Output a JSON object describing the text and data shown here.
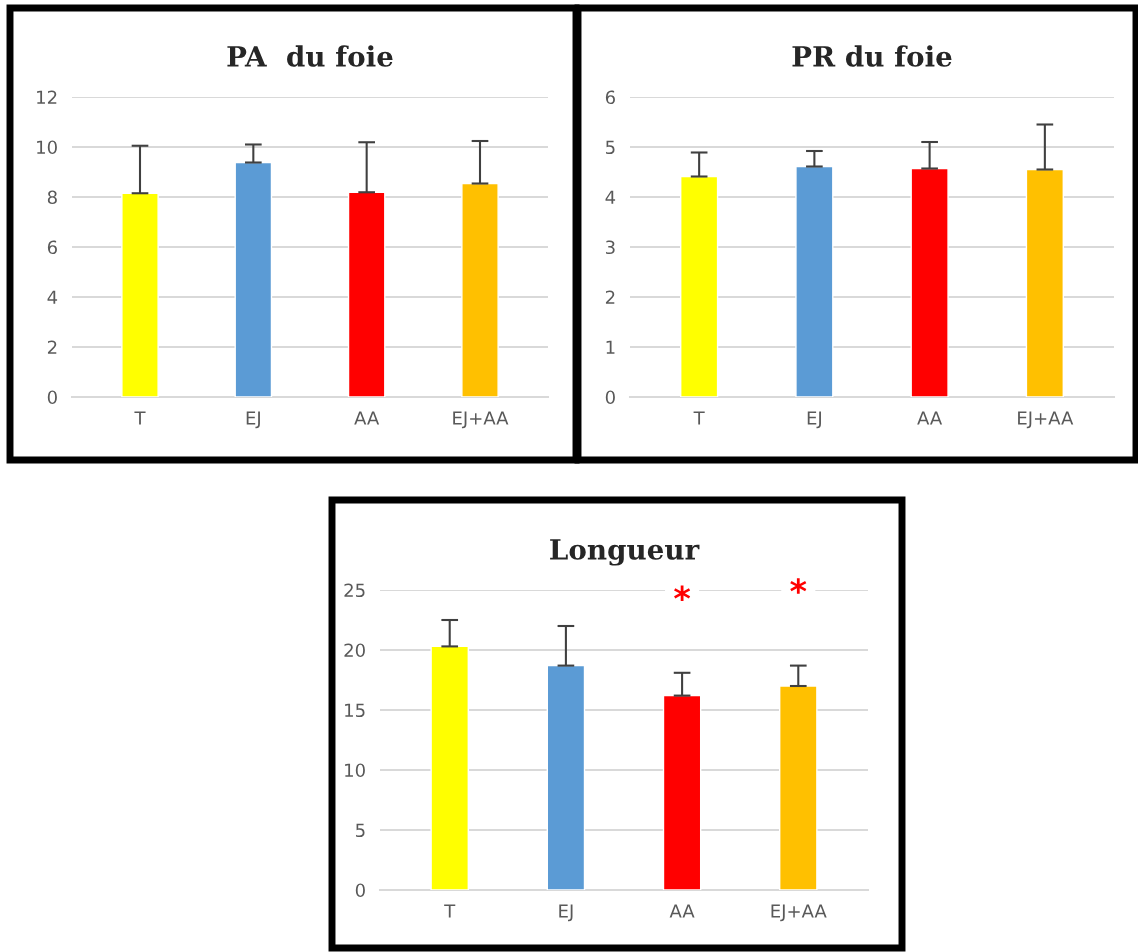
{
  "chart_data": [
    {
      "type": "bar",
      "title": "PA  du foie",
      "categories": [
        "T",
        "EJ",
        "AA",
        "EJ+AA"
      ],
      "colors": [
        "#ffff00",
        "#5b9bd5",
        "#ff0000",
        "#ffc000"
      ],
      "values": [
        8.15,
        9.38,
        8.19,
        8.54
      ],
      "errors": [
        1.9,
        0.72,
        2.0,
        1.7
      ],
      "ylim": [
        0,
        12
      ],
      "yticks": [
        0,
        2,
        4,
        6,
        8,
        10,
        12
      ],
      "grid": "y"
    },
    {
      "type": "bar",
      "title": "PR du foie",
      "categories": [
        "T",
        "EJ",
        "AA",
        "EJ+AA"
      ],
      "colors": [
        "#ffff00",
        "#5b9bd5",
        "#ff0000",
        "#ffc000"
      ],
      "values": [
        4.41,
        4.61,
        4.57,
        4.55
      ],
      "errors": [
        0.48,
        0.31,
        0.53,
        0.9
      ],
      "ylim": [
        0,
        6
      ],
      "yticks": [
        0,
        1,
        2,
        3,
        4,
        5,
        6
      ],
      "grid": "y"
    },
    {
      "type": "bar",
      "title": "Longueur",
      "categories": [
        "T",
        "EJ",
        "AA",
        "EJ+AA"
      ],
      "colors": [
        "#ffff00",
        "#5b9bd5",
        "#ff0000",
        "#ffc000"
      ],
      "values": [
        20.3,
        18.7,
        16.2,
        17.0
      ],
      "errors": [
        2.2,
        3.3,
        1.9,
        1.7
      ],
      "ylim": [
        0,
        25
      ],
      "yticks": [
        0,
        5,
        10,
        15,
        20,
        25
      ],
      "grid": "y",
      "annotations": [
        "*",
        "*"
      ]
    }
  ]
}
